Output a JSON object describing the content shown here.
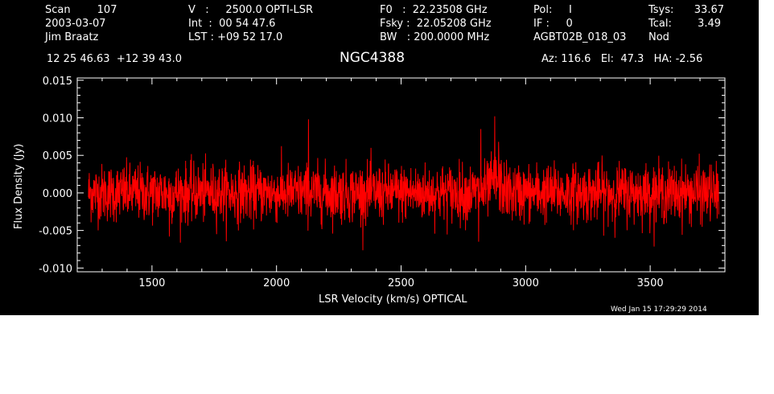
{
  "header": {
    "col1": [
      "Scan        107",
      "2003-03-07",
      "Jim Braatz"
    ],
    "col2": [
      "V   :     2500.0 OPTI-LSR",
      "Int  :  00 54 47.6",
      "LST : +09 52 17.0"
    ],
    "col3": [
      "F0   :  22.23508 GHz",
      "Fsky :  22.05208 GHz",
      "BW   : 200.0000 MHz"
    ],
    "col4": [
      "Pol:     I",
      "IF :     0",
      "AGBT02B_018_03"
    ],
    "col5_labels": [
      "Tsys:",
      "Tcal:",
      "Nod"
    ],
    "col5_values": [
      "33.67",
      "3.49",
      ""
    ],
    "coords": "12 25 46.63  +12 39 43.0",
    "source": "NGC4388",
    "azelha": "Az: 116.6   El:  47.3   HA: -2.56",
    "timestamp": "Wed Jan 15 17:29:29 2014"
  },
  "chart_data": {
    "type": "line",
    "title": "NGC4388",
    "xlabel": "LSR Velocity (km/s) OPTICAL",
    "ylabel": "Flux Density (Jy)",
    "xlim": [
      1200,
      3800
    ],
    "ylim": [
      -0.0105,
      0.0153
    ],
    "xticks": [
      1500,
      2000,
      2500,
      3000,
      3500
    ],
    "xtick_labels": [
      "1500",
      "2000",
      "2500",
      "3000",
      "3500"
    ],
    "yticks": [
      -0.01,
      -0.005,
      0.0,
      0.005,
      0.01,
      0.015
    ],
    "ytick_labels": [
      "-0.010",
      "-0.005",
      "0.000",
      "0.005",
      "0.010",
      "0.015"
    ],
    "grid": false,
    "series": [
      {
        "color": "#ff0000",
        "x_range": [
          1245,
          3775
        ],
        "noise_rms": 0.0019,
        "features": [
          {
            "x": 2128,
            "y": 0.0098
          },
          {
            "x": 2820,
            "y": 0.0085
          },
          {
            "x": 2876,
            "y": 0.0102
          },
          {
            "x": 2892,
            "y": 0.0068
          },
          {
            "x": 2812,
            "y": -0.0065
          },
          {
            "x": 1570,
            "y": -0.0058
          }
        ]
      }
    ]
  },
  "colors": {
    "background": "#000000",
    "foreground": "#ffffff",
    "trace": "#ff0000"
  }
}
